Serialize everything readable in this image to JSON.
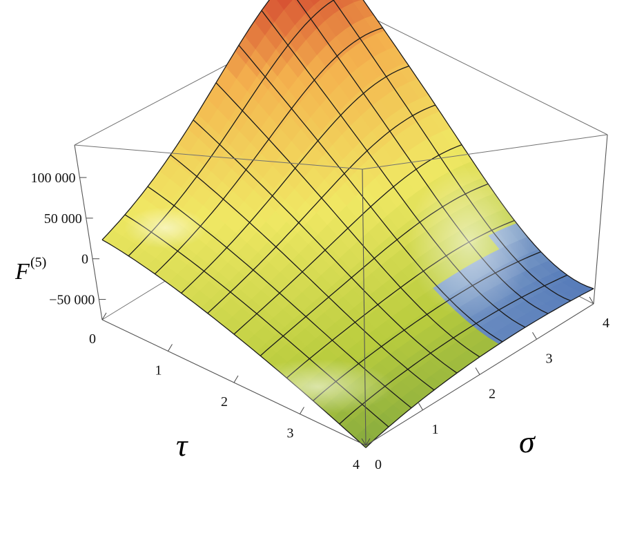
{
  "chart_data": {
    "type": "surface3d",
    "z_label": {
      "main": "F",
      "superscript": "(5)"
    },
    "x_label": "τ",
    "y_label": "σ",
    "x_ticks": [
      "0",
      "1",
      "2",
      "3",
      "4"
    ],
    "y_ticks": [
      "0",
      "1",
      "2",
      "3",
      "4"
    ],
    "z_ticks": [
      "100 000",
      "50 000",
      "0",
      "−50 000"
    ],
    "x_range": [
      0,
      4
    ],
    "y_range": [
      0,
      4
    ],
    "z_range": [
      -75000,
      140000
    ],
    "z_tick_values": [
      100000,
      50000,
      0,
      -50000
    ],
    "corner_values": {
      "tau0_sigma0": 4000,
      "tau4_sigma0": -62000,
      "tau0_sigma4": 138000,
      "tau4_sigma4": -60000
    },
    "colormap": [
      "#6e9a3e",
      "#b9cc3e",
      "#f0e864",
      "#f4b24e",
      "#d03a2c",
      "#8aa8cc",
      "#3e66b0"
    ],
    "mesh_lines": 9,
    "grid": false
  }
}
